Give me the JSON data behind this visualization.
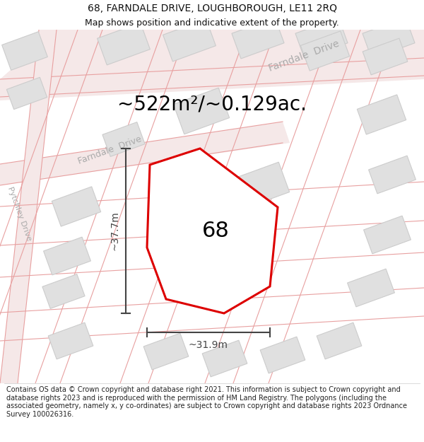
{
  "title_line1": "68, FARNDALE DRIVE, LOUGHBOROUGH, LE11 2RQ",
  "title_line2": "Map shows position and indicative extent of the property.",
  "area_text": "~522m²/~0.129ac.",
  "label_68": "68",
  "dim_height": "~37.7m",
  "dim_width": "~31.9m",
  "footer": "Contains OS data © Crown copyright and database right 2021. This information is subject to Crown copyright and database rights 2023 and is reproduced with the permission of HM Land Registry. The polygons (including the associated geometry, namely x, y co-ordinates) are subject to Crown copyright and database rights 2023 Ordnance Survey 100026316.",
  "bg_color": "#ffffff",
  "map_bg": "#ffffff",
  "plot_fill": "#ffffff",
  "plot_edge": "#dd0000",
  "road_color": "#f0c8c8",
  "road_line_color": "#e8a0a0",
  "building_fill": "#e0e0e0",
  "building_edge": "#cccccc",
  "dim_color": "#444444",
  "street_label_color": "#aaaaaa",
  "figsize": [
    6.0,
    6.25
  ],
  "dpi": 100,
  "title_fontsize": 10,
  "subtitle_fontsize": 9,
  "area_fontsize": 20,
  "label_fontsize": 22,
  "dim_fontsize": 10,
  "street_fontsize": 10,
  "footer_fontsize": 7
}
